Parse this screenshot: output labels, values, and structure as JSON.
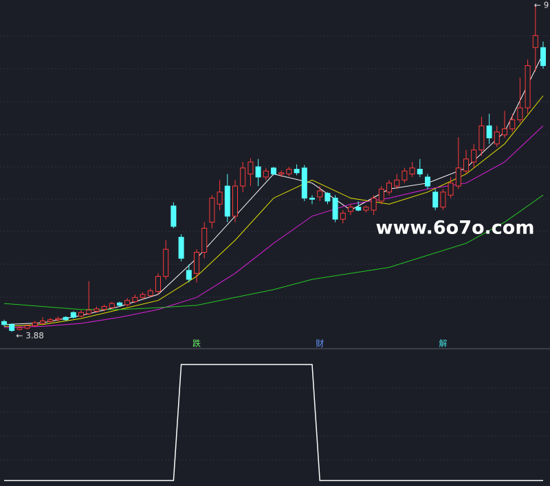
{
  "chart_data": [
    {
      "type": "candlestick",
      "ylim": [
        3.69,
        9.39
      ],
      "up_color": "#ff3b3b",
      "down_color": "#54ffff",
      "open": [
        4.05,
        4.0,
        3.92,
        3.94,
        3.98,
        4.02,
        4.05,
        4.08,
        4.12,
        4.2,
        4.14,
        4.18,
        4.22,
        4.25,
        4.28,
        4.36,
        4.33,
        4.38,
        4.45,
        4.48,
        4.55,
        4.8,
        5.97,
        5.45,
        4.9,
        4.85,
        5.2,
        5.7,
        6.0,
        6.3,
        5.8,
        6.3,
        6.5,
        6.62,
        6.45,
        6.6,
        6.5,
        6.5,
        6.58,
        6.6,
        6.1,
        6.12,
        6.18,
        6.1,
        5.75,
        5.88,
        5.95,
        5.9,
        5.9,
        6.05,
        6.2,
        6.3,
        6.4,
        6.5,
        6.58,
        6.45,
        6.2,
        5.95,
        6.15,
        6.3,
        6.55,
        6.7,
        6.9,
        7.3,
        7.0,
        7.15,
        7.25,
        7.4,
        7.6,
        8.6,
        8.6
      ],
      "high": [
        4.08,
        4.02,
        3.98,
        4.0,
        4.06,
        4.12,
        4.11,
        4.13,
        4.14,
        4.22,
        4.24,
        4.72,
        4.3,
        4.33,
        4.38,
        4.38,
        4.44,
        4.5,
        4.54,
        4.6,
        4.85,
        5.4,
        6.03,
        5.5,
        5.0,
        5.25,
        5.7,
        6.15,
        6.4,
        6.5,
        6.4,
        6.7,
        6.76,
        6.75,
        6.6,
        6.62,
        6.56,
        6.62,
        6.66,
        6.65,
        6.15,
        6.3,
        6.2,
        6.15,
        5.9,
        6.0,
        6.05,
        5.98,
        6.15,
        6.3,
        6.4,
        6.5,
        6.6,
        6.7,
        6.75,
        6.5,
        6.25,
        6.25,
        6.45,
        7.11,
        6.9,
        7.0,
        7.45,
        7.5,
        7.3,
        7.55,
        7.5,
        8.1,
        8.4,
        9.3,
        8.7
      ],
      "low": [
        3.97,
        3.88,
        3.9,
        3.92,
        3.96,
        4.0,
        4.03,
        4.05,
        4.06,
        4.1,
        4.12,
        4.16,
        4.2,
        4.22,
        4.26,
        4.3,
        4.3,
        4.36,
        4.42,
        4.46,
        4.5,
        4.75,
        5.6,
        5.05,
        4.7,
        4.7,
        5.1,
        5.6,
        5.9,
        5.7,
        5.7,
        6.2,
        6.3,
        6.3,
        6.4,
        6.48,
        6.45,
        6.46,
        6.48,
        6.05,
        6.0,
        6.05,
        6.0,
        5.7,
        5.68,
        5.82,
        5.88,
        5.86,
        5.82,
        6.0,
        6.15,
        6.25,
        6.35,
        6.45,
        6.45,
        6.25,
        5.9,
        5.9,
        6.1,
        6.25,
        6.5,
        6.6,
        6.8,
        7.0,
        6.95,
        7.1,
        7.2,
        7.35,
        7.5,
        8.2,
        8.25
      ],
      "close": [
        4.0,
        3.9,
        3.95,
        3.98,
        4.03,
        4.06,
        4.08,
        4.1,
        4.08,
        4.12,
        4.2,
        4.24,
        4.26,
        4.3,
        4.35,
        4.32,
        4.4,
        4.45,
        4.5,
        4.56,
        4.8,
        5.25,
        5.63,
        5.1,
        4.75,
        5.2,
        5.6,
        6.1,
        6.2,
        5.8,
        6.3,
        6.6,
        6.7,
        6.45,
        6.55,
        6.5,
        6.52,
        6.58,
        6.52,
        6.1,
        6.08,
        6.22,
        6.05,
        5.75,
        5.85,
        5.95,
        5.9,
        5.95,
        6.1,
        6.25,
        6.35,
        6.4,
        6.55,
        6.6,
        6.5,
        6.3,
        5.95,
        6.2,
        6.35,
        6.6,
        6.75,
        6.9,
        7.3,
        7.1,
        7.2,
        7.25,
        7.4,
        7.6,
        8.3,
        8.8,
        8.3
      ],
      "lines": [
        {
          "color": "#ffffff",
          "x": [
            0,
            5,
            10,
            15,
            20,
            25,
            30,
            35,
            40,
            45,
            50,
            55,
            60,
            65,
            70
          ],
          "values": [
            4.0,
            4.03,
            4.15,
            4.3,
            4.5,
            5.1,
            5.8,
            6.5,
            6.35,
            5.9,
            6.25,
            6.35,
            6.6,
            7.2,
            8.5
          ]
        },
        {
          "color": "#e6e600",
          "x": [
            0,
            5,
            10,
            15,
            20,
            25,
            30,
            35,
            40,
            45,
            50,
            55,
            60,
            65,
            70
          ],
          "values": [
            3.97,
            4.0,
            4.1,
            4.25,
            4.4,
            4.8,
            5.4,
            6.1,
            6.4,
            6.1,
            6.0,
            6.2,
            6.5,
            7.0,
            7.8
          ]
        },
        {
          "color": "#e020e0",
          "x": [
            0,
            5,
            10,
            15,
            20,
            25,
            30,
            35,
            40,
            45,
            50,
            55,
            60,
            65,
            70
          ],
          "values": [
            3.95,
            3.97,
            4.02,
            4.12,
            4.25,
            4.45,
            4.85,
            5.35,
            5.8,
            6.0,
            6.1,
            6.25,
            6.35,
            6.7,
            7.3
          ]
        },
        {
          "color": "#22cc22",
          "x": [
            0,
            5,
            10,
            15,
            20,
            25,
            30,
            35,
            40,
            45,
            50,
            55,
            60,
            65,
            70
          ],
          "values": [
            4.35,
            4.3,
            4.25,
            4.25,
            4.28,
            4.32,
            4.45,
            4.58,
            4.75,
            4.85,
            4.95,
            5.15,
            5.35,
            5.7,
            6.15
          ]
        }
      ],
      "low_label": "3.88",
      "high_label": "9",
      "watermark": "www.6o7o.com"
    },
    {
      "type": "line",
      "ylim": [
        0,
        1
      ],
      "color": "#ffffff",
      "values": [
        0,
        0,
        0,
        0,
        0,
        0,
        0,
        0,
        0,
        0,
        0,
        0,
        0,
        0,
        0,
        0,
        0,
        0,
        0,
        0,
        0,
        0,
        0,
        1,
        1,
        1,
        1,
        1,
        1,
        1,
        1,
        1,
        1,
        1,
        1,
        1,
        1,
        1,
        1,
        1,
        1,
        0,
        0,
        0,
        0,
        0,
        0,
        0,
        0,
        0,
        0,
        0,
        0,
        0,
        0,
        0,
        0,
        0,
        0,
        0,
        0,
        0,
        0,
        0,
        0,
        0,
        0,
        0,
        0,
        0,
        0
      ],
      "annotations": [
        {
          "text": "跌",
          "x": 25,
          "color": "#66ee66"
        },
        {
          "text": "财",
          "x": 41,
          "color": "#6699ff"
        },
        {
          "text": "解",
          "x": 57,
          "color": "#44dddd"
        }
      ]
    }
  ]
}
